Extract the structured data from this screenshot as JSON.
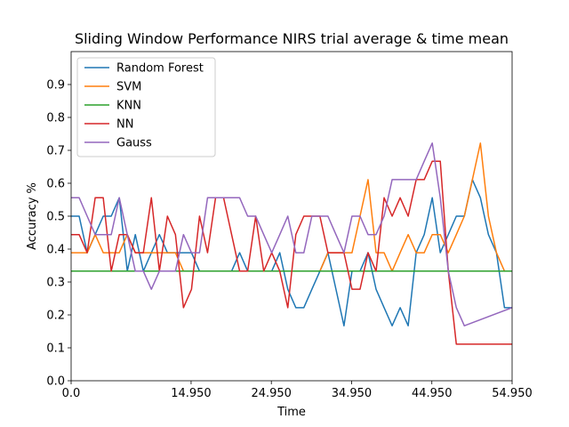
{
  "chart_data": {
    "type": "line",
    "title": "Sliding Window Performance NIRS trial average & time mean",
    "xlabel": "Time",
    "ylabel": "Accuracy %",
    "xlim": [
      0,
      54.95
    ],
    "ylim": [
      0,
      1.0
    ],
    "xticks": [
      0,
      14.95,
      24.95,
      34.95,
      44.95,
      54.95
    ],
    "xtick_labels": [
      "0.0",
      "14.950",
      "24.950",
      "34.950",
      "44.950",
      "54.950"
    ],
    "yticks": [
      0,
      0.1,
      0.2,
      0.3,
      0.4,
      0.5,
      0.6,
      0.7,
      0.8,
      0.9
    ],
    "ytick_labels": [
      "0.0",
      "0.1",
      "0.2",
      "0.3",
      "0.4",
      "0.5",
      "0.6",
      "0.7",
      "0.8",
      "0.9"
    ],
    "grid": false,
    "legend_position": "top-left",
    "series": [
      {
        "name": "Random Forest",
        "color": "#1f77b4",
        "values": [
          [
            0,
            0.5
          ],
          [
            1,
            0.5
          ],
          [
            2,
            0.389
          ],
          [
            3,
            0.444
          ],
          [
            4,
            0.5
          ],
          [
            5,
            0.5
          ],
          [
            6,
            0.556
          ],
          [
            7,
            0.333
          ],
          [
            8,
            0.444
          ],
          [
            9,
            0.333
          ],
          [
            10,
            0.389
          ],
          [
            11,
            0.444
          ],
          [
            12,
            0.389
          ],
          [
            13,
            0.389
          ],
          [
            14,
            0.389
          ],
          [
            15,
            0.389
          ],
          [
            16,
            0.333
          ],
          [
            17,
            0.333
          ],
          [
            18,
            0.333
          ],
          [
            19,
            0.333
          ],
          [
            20,
            0.333
          ],
          [
            21,
            0.389
          ],
          [
            22,
            0.333
          ],
          [
            23,
            0.333
          ],
          [
            24,
            0.333
          ],
          [
            25,
            0.333
          ],
          [
            26,
            0.389
          ],
          [
            27,
            0.278
          ],
          [
            28,
            0.222
          ],
          [
            29,
            0.222
          ],
          [
            30,
            0.278
          ],
          [
            31,
            0.333
          ],
          [
            32,
            0.389
          ],
          [
            33,
            0.278
          ],
          [
            34,
            0.167
          ],
          [
            35,
            0.333
          ],
          [
            36,
            0.333
          ],
          [
            37,
            0.389
          ],
          [
            38,
            0.278
          ],
          [
            39,
            0.222
          ],
          [
            40,
            0.167
          ],
          [
            41,
            0.222
          ],
          [
            42,
            0.167
          ],
          [
            43,
            0.389
          ],
          [
            44,
            0.444
          ],
          [
            45,
            0.556
          ],
          [
            46,
            0.389
          ],
          [
            47,
            0.444
          ],
          [
            48,
            0.5
          ],
          [
            49,
            0.5
          ],
          [
            50,
            0.611
          ],
          [
            51,
            0.556
          ],
          [
            52,
            0.444
          ],
          [
            53,
            0.389
          ],
          [
            54,
            0.222
          ],
          [
            54.95,
            0.222
          ]
        ]
      },
      {
        "name": "SVM",
        "color": "#ff7f0e",
        "values": [
          [
            0,
            0.389
          ],
          [
            1,
            0.389
          ],
          [
            2,
            0.389
          ],
          [
            3,
            0.444
          ],
          [
            4,
            0.389
          ],
          [
            5,
            0.389
          ],
          [
            6,
            0.389
          ],
          [
            7,
            0.444
          ],
          [
            8,
            0.389
          ],
          [
            9,
            0.389
          ],
          [
            10,
            0.389
          ],
          [
            11,
            0.389
          ],
          [
            12,
            0.389
          ],
          [
            13,
            0.389
          ],
          [
            14,
            0.333
          ],
          [
            15,
            0.333
          ],
          [
            16,
            0.333
          ],
          [
            17,
            0.333
          ],
          [
            18,
            0.333
          ],
          [
            19,
            0.333
          ],
          [
            20,
            0.333
          ],
          [
            21,
            0.333
          ],
          [
            22,
            0.333
          ],
          [
            23,
            0.333
          ],
          [
            24,
            0.333
          ],
          [
            25,
            0.333
          ],
          [
            26,
            0.333
          ],
          [
            27,
            0.333
          ],
          [
            28,
            0.333
          ],
          [
            29,
            0.333
          ],
          [
            30,
            0.333
          ],
          [
            31,
            0.333
          ],
          [
            32,
            0.389
          ],
          [
            33,
            0.389
          ],
          [
            34,
            0.389
          ],
          [
            35,
            0.389
          ],
          [
            36,
            0.5
          ],
          [
            37,
            0.611
          ],
          [
            38,
            0.389
          ],
          [
            39,
            0.389
          ],
          [
            40,
            0.333
          ],
          [
            41,
            0.389
          ],
          [
            42,
            0.444
          ],
          [
            43,
            0.389
          ],
          [
            44,
            0.389
          ],
          [
            45,
            0.444
          ],
          [
            46,
            0.444
          ],
          [
            47,
            0.389
          ],
          [
            48,
            0.444
          ],
          [
            49,
            0.5
          ],
          [
            50,
            0.611
          ],
          [
            51,
            0.722
          ],
          [
            52,
            0.5
          ],
          [
            53,
            0.389
          ],
          [
            54,
            0.333
          ]
        ]
      },
      {
        "name": "KNN",
        "color": "#2ca02c",
        "values": [
          [
            0,
            0.333
          ],
          [
            54.95,
            0.333
          ]
        ]
      },
      {
        "name": "NN",
        "color": "#d62728",
        "values": [
          [
            0,
            0.444
          ],
          [
            1,
            0.444
          ],
          [
            2,
            0.389
          ],
          [
            3,
            0.556
          ],
          [
            4,
            0.556
          ],
          [
            5,
            0.333
          ],
          [
            6,
            0.444
          ],
          [
            7,
            0.444
          ],
          [
            8,
            0.389
          ],
          [
            9,
            0.389
          ],
          [
            10,
            0.556
          ],
          [
            11,
            0.333
          ],
          [
            12,
            0.5
          ],
          [
            13,
            0.444
          ],
          [
            14,
            0.222
          ],
          [
            15,
            0.278
          ],
          [
            16,
            0.5
          ],
          [
            17,
            0.389
          ],
          [
            18,
            0.556
          ],
          [
            19,
            0.556
          ],
          [
            20,
            0.444
          ],
          [
            21,
            0.333
          ],
          [
            22,
            0.333
          ],
          [
            23,
            0.5
          ],
          [
            24,
            0.333
          ],
          [
            25,
            0.389
          ],
          [
            26,
            0.333
          ],
          [
            27,
            0.222
          ],
          [
            28,
            0.444
          ],
          [
            29,
            0.5
          ],
          [
            30,
            0.5
          ],
          [
            31,
            0.5
          ],
          [
            32,
            0.389
          ],
          [
            33,
            0.389
          ],
          [
            34,
            0.389
          ],
          [
            35,
            0.278
          ],
          [
            36,
            0.278
          ],
          [
            37,
            0.389
          ],
          [
            38,
            0.333
          ],
          [
            39,
            0.556
          ],
          [
            40,
            0.5
          ],
          [
            41,
            0.556
          ],
          [
            42,
            0.5
          ],
          [
            43,
            0.611
          ],
          [
            44,
            0.611
          ],
          [
            45,
            0.667
          ],
          [
            46,
            0.667
          ],
          [
            47,
            0.333
          ],
          [
            48,
            0.111
          ],
          [
            49,
            0.111
          ],
          [
            54.95,
            0.111
          ]
        ]
      },
      {
        "name": "Gauss",
        "color": "#9467bd",
        "values": [
          [
            0,
            0.556
          ],
          [
            1,
            0.556
          ],
          [
            2,
            0.5
          ],
          [
            3,
            0.444
          ],
          [
            4,
            0.444
          ],
          [
            5,
            0.444
          ],
          [
            6,
            0.556
          ],
          [
            7,
            0.444
          ],
          [
            8,
            0.333
          ],
          [
            9,
            0.333
          ],
          [
            10,
            0.278
          ],
          [
            11,
            0.333
          ],
          [
            12,
            0.333
          ],
          [
            13,
            0.333
          ],
          [
            14,
            0.444
          ],
          [
            15,
            0.389
          ],
          [
            16,
            0.389
          ],
          [
            17,
            0.556
          ],
          [
            18,
            0.556
          ],
          [
            19,
            0.556
          ],
          [
            20,
            0.556
          ],
          [
            21,
            0.556
          ],
          [
            22,
            0.5
          ],
          [
            23,
            0.5
          ],
          [
            24,
            0.444
          ],
          [
            25,
            0.389
          ],
          [
            26,
            0.444
          ],
          [
            27,
            0.5
          ],
          [
            28,
            0.389
          ],
          [
            29,
            0.389
          ],
          [
            30,
            0.5
          ],
          [
            31,
            0.5
          ],
          [
            32,
            0.5
          ],
          [
            33,
            0.444
          ],
          [
            34,
            0.389
          ],
          [
            35,
            0.5
          ],
          [
            36,
            0.5
          ],
          [
            37,
            0.444
          ],
          [
            38,
            0.444
          ],
          [
            39,
            0.5
          ],
          [
            40,
            0.611
          ],
          [
            41,
            0.611
          ],
          [
            42,
            0.611
          ],
          [
            43,
            0.611
          ],
          [
            44,
            0.667
          ],
          [
            45,
            0.722
          ],
          [
            46,
            0.556
          ],
          [
            47,
            0.333
          ],
          [
            48,
            0.222
          ],
          [
            49,
            0.167
          ],
          [
            54.95,
            0.222
          ]
        ]
      }
    ]
  }
}
